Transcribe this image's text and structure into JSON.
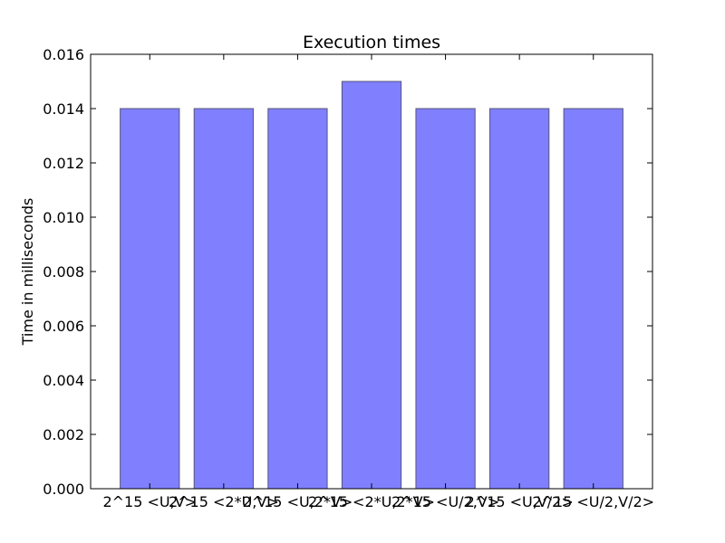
{
  "chart_data": {
    "type": "bar",
    "title": "Execution times",
    "xlabel": "",
    "ylabel": "Time in milliseconds",
    "categories": [
      "2^15 <U,V>",
      "2^15 <2*U,V>",
      "2^15 <U,2*V>",
      "2^15 <2*U,2*V>",
      "2^15 <U/2,V>",
      "2^15 <U,V/2>",
      "2^15 <U/2,V/2>"
    ],
    "values": [
      0.014,
      0.014,
      0.014,
      0.015,
      0.014,
      0.014,
      0.014
    ],
    "ylim": [
      0,
      0.016
    ],
    "yticks": [
      "0.000",
      "0.002",
      "0.004",
      "0.006",
      "0.008",
      "0.010",
      "0.012",
      "0.014",
      "0.016"
    ],
    "grid": false,
    "bar_color": "#8080ff",
    "bar_edge_color": "#555577"
  }
}
